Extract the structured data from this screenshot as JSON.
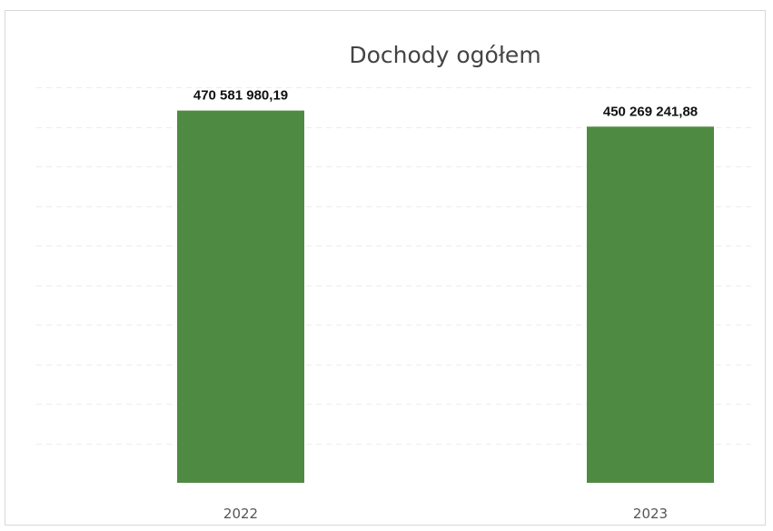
{
  "chart_data": {
    "type": "bar",
    "title": "Dochody ogółem",
    "categories": [
      "2022",
      "2023"
    ],
    "values": [
      470581980.19,
      450269241.88
    ],
    "data_labels": [
      "470 581 980,19",
      "450 269 241,88"
    ],
    "xlabel": "",
    "ylabel": "",
    "ylim": [
      0,
      500000000
    ],
    "grid": true,
    "legend": "none",
    "bar_color": "#4f8a43"
  }
}
